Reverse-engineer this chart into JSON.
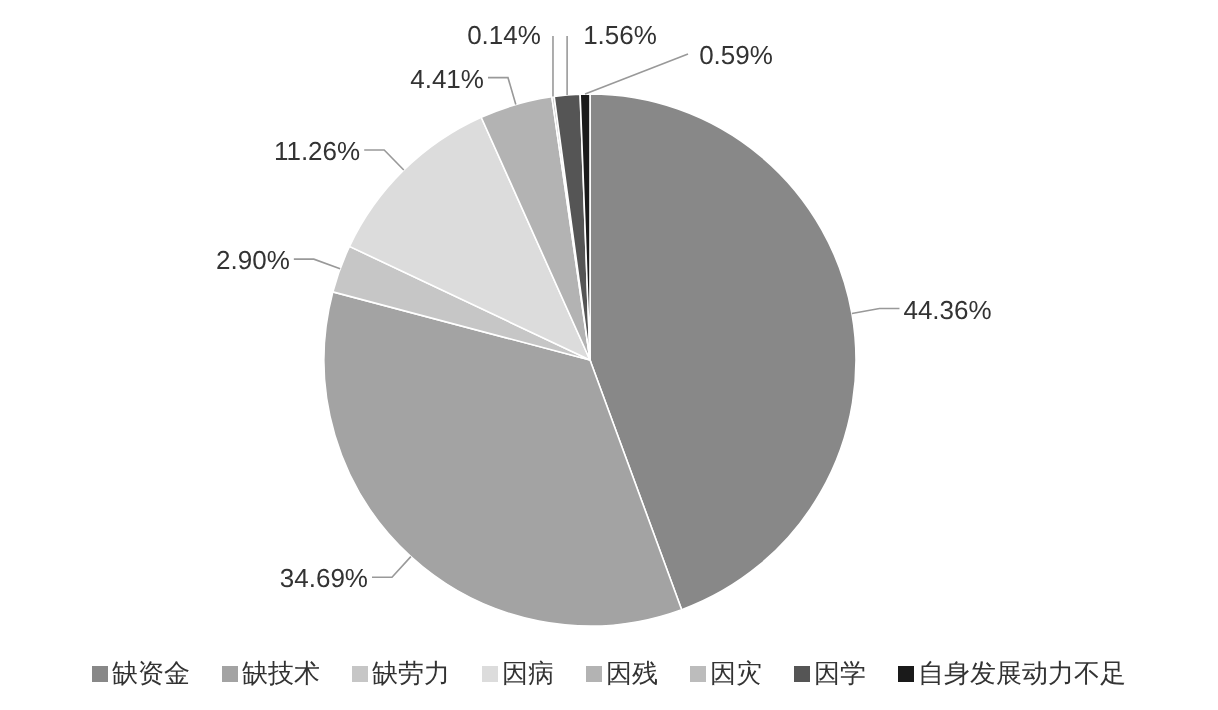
{
  "chart_data": {
    "type": "pie",
    "categories": [
      "缺资金",
      "缺技术",
      "缺劳力",
      "因病",
      "因残",
      "因灾",
      "因学",
      "自身发展动力不足"
    ],
    "values": [
      44.36,
      34.69,
      2.9,
      11.26,
      4.41,
      0.14,
      1.56,
      0.59
    ],
    "value_labels": [
      "44.36%",
      "34.69%",
      "2.90%",
      "11.26%",
      "4.41%",
      "0.14%",
      "1.56%",
      "0.59%"
    ],
    "colors": [
      "#888888",
      "#a3a3a3",
      "#c6c6c6",
      "#dcdcdc",
      "#b3b3b3",
      "#bcbcbc",
      "#555555",
      "#1a1a1a"
    ],
    "legend": "bottom"
  }
}
